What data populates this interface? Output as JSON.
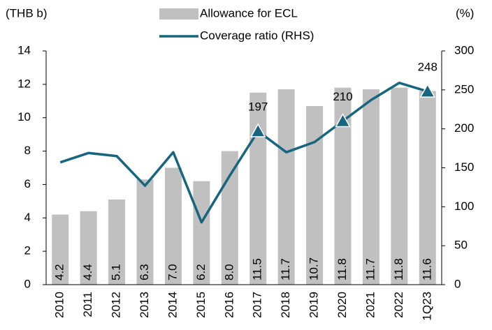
{
  "chart_data": {
    "type": "bar-line",
    "y_label": "(THB b)",
    "y2_label": "(%)",
    "categories": [
      "2010",
      "2011",
      "2012",
      "2013",
      "2014",
      "2015",
      "2016",
      "2017",
      "2018",
      "2019",
      "2020",
      "2021",
      "2022",
      "1Q23"
    ],
    "series": [
      {
        "name": "Allowance for ECL",
        "type": "bar",
        "color": "#c0c0c0",
        "values": [
          4.2,
          4.4,
          5.1,
          6.3,
          7.0,
          6.2,
          8.0,
          11.5,
          11.7,
          10.7,
          11.8,
          11.7,
          11.8,
          11.6
        ],
        "value_labels": [
          "4.2",
          "4.4",
          "5.1",
          "6.3",
          "7.0",
          "6.2",
          "8.0",
          "11.5",
          "11.7",
          "10.7",
          "11.8",
          "11.7",
          "11.8",
          "11.6"
        ]
      },
      {
        "name": "Coverage ratio (RHS)",
        "type": "line",
        "axis": "y2",
        "color": "#17657f",
        "values": [
          157,
          169,
          165,
          127,
          170,
          80,
          140,
          197,
          170,
          183,
          210,
          237,
          259,
          248
        ],
        "marked_categories": [
          "2017",
          "2020",
          "1Q23"
        ]
      }
    ],
    "ylim": [
      0,
      14
    ],
    "yticks": [
      0,
      2,
      4,
      6,
      8,
      10,
      12,
      14
    ],
    "y2lim": [
      0,
      300
    ],
    "y2ticks": [
      0,
      50,
      100,
      150,
      200,
      250,
      300
    ],
    "grid": false
  }
}
